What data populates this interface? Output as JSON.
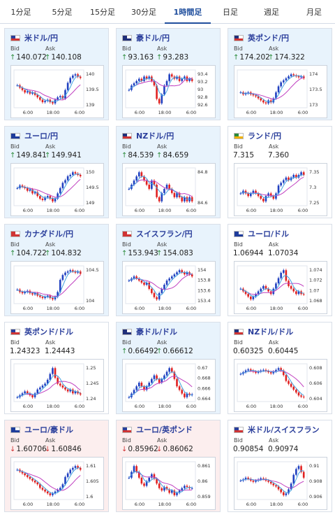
{
  "tabs": [
    {
      "label": "1分足",
      "active": false
    },
    {
      "label": "5分足",
      "active": false
    },
    {
      "label": "15分足",
      "active": false
    },
    {
      "label": "30分足",
      "active": false
    },
    {
      "label": "1時間足",
      "active": true
    },
    {
      "label": "日足",
      "active": false
    },
    {
      "label": "週足",
      "active": false
    },
    {
      "label": "月足",
      "active": false
    }
  ],
  "bid_label": "Bid",
  "ask_label": "Ask",
  "colors": {
    "accent": "#1f4e9d",
    "up_bg": "#e8f3fc",
    "down_bg": "#fceeee",
    "candle_up": "#2040c0",
    "candle_down": "#e02020",
    "ma_line": "#c040c0",
    "ma2_line": "#40a0e0",
    "arrow_up": "#2a8a3a",
    "arrow_down": "#d03434"
  },
  "pairs": [
    {
      "name": "米ドル/円",
      "flag": "us",
      "trend": "up",
      "bid": "140.072",
      "ask": "140.108",
      "arrow": "up",
      "yticks": [
        "140",
        "139.5",
        "139"
      ],
      "xticks": [
        "6:00",
        "18:00",
        "6:00"
      ],
      "series": [
        139.8,
        139.7,
        139.6,
        139.5,
        139.55,
        139.45,
        139.5,
        139.4,
        139.3,
        139.2,
        139.1,
        139.15,
        139.2,
        139.1,
        139.05,
        139.2,
        139.3,
        139.35,
        139.25,
        139.6,
        139.9,
        140.1,
        140.2,
        140.25,
        140.15,
        140.1
      ]
    },
    {
      "name": "豪ドル/円",
      "flag": "au",
      "trend": "up",
      "bid": "93.163",
      "ask": "93.283",
      "arrow": "up",
      "yticks": [
        "93.4",
        "93.2",
        "93",
        "92.8",
        "92.6"
      ],
      "xticks": [
        "6:00",
        "18:00",
        "6:00"
      ],
      "series": [
        93.0,
        93.1,
        93.15,
        93.2,
        93.25,
        93.2,
        93.3,
        93.25,
        93.3,
        93.2,
        93.1,
        92.8,
        92.7,
        92.9,
        93.1,
        93.2,
        93.35,
        93.3,
        93.25,
        93.3,
        93.2,
        93.25,
        93.3,
        93.2,
        93.25,
        93.2
      ]
    },
    {
      "name": "英ポンド/円",
      "flag": "gb",
      "trend": "up",
      "bid": "174.202",
      "ask": "174.322",
      "arrow": "up",
      "yticks": [
        "174",
        "173.5",
        "173"
      ],
      "xticks": [
        "6:00",
        "18:00",
        "6:00"
      ],
      "series": [
        173.5,
        173.4,
        173.45,
        173.5,
        173.4,
        173.35,
        173.3,
        173.2,
        173.1,
        173.0,
        172.95,
        173.1,
        173.0,
        173.2,
        173.5,
        173.8,
        174.0,
        174.1,
        174.2,
        174.3,
        174.4,
        174.35,
        174.3,
        174.25,
        174.3,
        174.2
      ]
    },
    {
      "name": "ユーロ/円",
      "flag": "eu",
      "trend": "up",
      "bid": "149.841",
      "ask": "149.941",
      "arrow": "up",
      "yticks": [
        "150",
        "149.5",
        "149"
      ],
      "xticks": [
        "6:00",
        "18:00",
        "6:00"
      ],
      "series": [
        149.4,
        149.5,
        149.45,
        149.4,
        149.3,
        149.35,
        149.2,
        149.25,
        149.1,
        149.0,
        148.95,
        149.05,
        149.1,
        149.0,
        148.9,
        149.0,
        149.2,
        149.4,
        149.6,
        149.7,
        149.85,
        149.9,
        150.0,
        149.95,
        149.9,
        149.85
      ]
    },
    {
      "name": "NZドル/円",
      "flag": "nz",
      "trend": "up",
      "bid": "84.539",
      "ask": "84.659",
      "arrow": "up",
      "yticks": [
        "84.8",
        "84.6"
      ],
      "xticks": [
        "6:00",
        "18:00",
        "6:00"
      ],
      "series": [
        84.7,
        84.75,
        84.8,
        84.85,
        84.9,
        84.85,
        84.8,
        84.75,
        84.7,
        84.8,
        84.75,
        84.6,
        84.55,
        84.65,
        84.7,
        84.75,
        84.7,
        84.65,
        84.6,
        84.65,
        84.6,
        84.55,
        84.6,
        84.55,
        84.6,
        84.55
      ]
    },
    {
      "name": "ランド/円",
      "flag": "za",
      "trend": "neutral",
      "bid": "7.315",
      "ask": "7.360",
      "arrow": "none",
      "yticks": [
        "7.35",
        "7.3",
        "7.25"
      ],
      "xticks": [
        "6:00",
        "18:00",
        "6:00"
      ],
      "series": [
        7.27,
        7.28,
        7.27,
        7.26,
        7.27,
        7.28,
        7.27,
        7.26,
        7.25,
        7.24,
        7.26,
        7.27,
        7.26,
        7.25,
        7.27,
        7.3,
        7.31,
        7.32,
        7.33,
        7.32,
        7.33,
        7.34,
        7.33,
        7.34,
        7.35,
        7.34
      ]
    },
    {
      "name": "カナダドル/円",
      "flag": "ca",
      "trend": "up",
      "bid": "104.722",
      "ask": "104.832",
      "arrow": "up",
      "yticks": [
        "104.5",
        "104"
      ],
      "xticks": [
        "6:00",
        "18:00",
        "6:00"
      ],
      "series": [
        104.1,
        104.0,
        103.95,
        104.0,
        104.05,
        103.95,
        103.9,
        103.95,
        103.85,
        103.8,
        103.75,
        103.8,
        103.85,
        103.75,
        103.7,
        103.8,
        104.0,
        104.5,
        104.7,
        104.8,
        104.85,
        104.9,
        104.85,
        104.8,
        104.85,
        104.75
      ]
    },
    {
      "name": "スイスフラン/円",
      "flag": "ch",
      "trend": "up",
      "bid": "153.943",
      "ask": "154.083",
      "arrow": "up",
      "yticks": [
        "154",
        "153.8",
        "153.6",
        "153.4"
      ],
      "xticks": [
        "6:00",
        "18:00",
        "6:00"
      ],
      "series": [
        153.8,
        153.85,
        153.9,
        153.85,
        153.8,
        153.75,
        153.7,
        153.75,
        153.6,
        153.5,
        153.4,
        153.35,
        153.5,
        153.6,
        153.7,
        153.8,
        153.85,
        153.9,
        153.95,
        154.0,
        154.05,
        154.0,
        153.95,
        154.0,
        153.95,
        153.9
      ]
    },
    {
      "name": "ユーロ/ドル",
      "flag": "eu",
      "trend": "neutral",
      "bid": "1.06944",
      "ask": "1.07034",
      "arrow": "none",
      "yticks": [
        "1.074",
        "1.072",
        "1.07",
        "1.068"
      ],
      "xticks": [
        "6:00",
        "18:00",
        "6:00"
      ],
      "series": [
        1.0705,
        1.07,
        1.0695,
        1.069,
        1.0685,
        1.069,
        1.0695,
        1.07,
        1.0705,
        1.071,
        1.0705,
        1.07,
        1.0695,
        1.0705,
        1.0715,
        1.0725,
        1.0735,
        1.074,
        1.072,
        1.071,
        1.0705,
        1.07,
        1.0695,
        1.07,
        1.0695,
        1.0694
      ]
    },
    {
      "name": "英ポンド/ドル",
      "flag": "us",
      "trend": "neutral",
      "bid": "1.24323",
      "ask": "1.24443",
      "arrow": "none",
      "yticks": [
        "1.25",
        "1.245",
        "1.24"
      ],
      "xticks": [
        "6:00",
        "18:00",
        "6:00"
      ],
      "series": [
        1.2425,
        1.243,
        1.2435,
        1.244,
        1.2435,
        1.243,
        1.2425,
        1.2435,
        1.2445,
        1.245,
        1.2455,
        1.246,
        1.247,
        1.2485,
        1.25,
        1.2475,
        1.246,
        1.2455,
        1.245,
        1.2445,
        1.244,
        1.2445,
        1.2435,
        1.244,
        1.2435,
        1.2432
      ]
    },
    {
      "name": "豪ドル/ドル",
      "flag": "au",
      "trend": "up",
      "bid": "0.66492",
      "ask": "0.66612",
      "arrow": "up",
      "yticks": [
        "0.67",
        "0.668",
        "0.666",
        "0.664"
      ],
      "xticks": [
        "6:00",
        "18:00",
        "6:00"
      ],
      "series": [
        0.6645,
        0.665,
        0.6655,
        0.666,
        0.6665,
        0.666,
        0.6655,
        0.666,
        0.6665,
        0.667,
        0.6675,
        0.667,
        0.6665,
        0.667,
        0.6675,
        0.668,
        0.6685,
        0.668,
        0.667,
        0.666,
        0.6655,
        0.665,
        0.6645,
        0.665,
        0.6648,
        0.6649
      ]
    },
    {
      "name": "NZドル/ドル",
      "flag": "nz",
      "trend": "neutral",
      "bid": "0.60325",
      "ask": "0.60445",
      "arrow": "none",
      "yticks": [
        "0.608",
        "0.606",
        "0.604"
      ],
      "xticks": [
        "6:00",
        "18:00",
        "6:00"
      ],
      "series": [
        0.6072,
        0.6075,
        0.6078,
        0.608,
        0.6078,
        0.6076,
        0.6074,
        0.6076,
        0.6078,
        0.6079,
        0.6077,
        0.6075,
        0.6073,
        0.6076,
        0.6079,
        0.6082,
        0.6078,
        0.607,
        0.606,
        0.6055,
        0.605,
        0.6045,
        0.604,
        0.6035,
        0.6033,
        0.6032
      ]
    },
    {
      "name": "ユーロ/豪ドル",
      "flag": "eu",
      "trend": "down",
      "bid": "1.60706",
      "ask": "1.60846",
      "arrow": "down",
      "yticks": [
        "1.61",
        "1.605",
        "1.6"
      ],
      "xticks": [
        "6:00",
        "18:00",
        "6:00"
      ],
      "series": [
        1.607,
        1.6065,
        1.606,
        1.6055,
        1.605,
        1.6045,
        1.604,
        1.6035,
        1.603,
        1.602,
        1.6015,
        1.601,
        1.6005,
        1.6,
        1.6005,
        1.601,
        1.6015,
        1.602,
        1.603,
        1.605,
        1.606,
        1.607,
        1.6075,
        1.608,
        1.6075,
        1.607
      ]
    },
    {
      "name": "ユーロ/英ポンド",
      "flag": "us",
      "trend": "down",
      "bid": "0.85962",
      "ask": "0.86062",
      "arrow": "down",
      "yticks": [
        "0.861",
        "0.86",
        "0.859"
      ],
      "xticks": [
        "6:00",
        "18:00",
        "6:00"
      ],
      "series": [
        0.8605,
        0.861,
        0.8615,
        0.861,
        0.8605,
        0.86,
        0.8598,
        0.8602,
        0.8605,
        0.8608,
        0.8604,
        0.86,
        0.8596,
        0.8594,
        0.8597,
        0.8595,
        0.8592,
        0.8594,
        0.859,
        0.8592,
        0.8594,
        0.8596,
        0.8598,
        0.8597,
        0.8596,
        0.8596
      ]
    },
    {
      "name": "米ドル/スイスフラン",
      "flag": "us",
      "trend": "neutral",
      "bid": "0.90854",
      "ask": "0.90974",
      "arrow": "none",
      "yticks": [
        "0.91",
        "0.908",
        "0.906"
      ],
      "xticks": [
        "6:00",
        "18:00",
        "6:00"
      ],
      "series": [
        0.908,
        0.9082,
        0.9085,
        0.9083,
        0.908,
        0.9078,
        0.908,
        0.9082,
        0.9084,
        0.9083,
        0.908,
        0.9078,
        0.9075,
        0.9072,
        0.907,
        0.9065,
        0.906,
        0.9055,
        0.9058,
        0.9065,
        0.9075,
        0.909,
        0.91,
        0.9105,
        0.9095,
        0.9085
      ]
    }
  ]
}
